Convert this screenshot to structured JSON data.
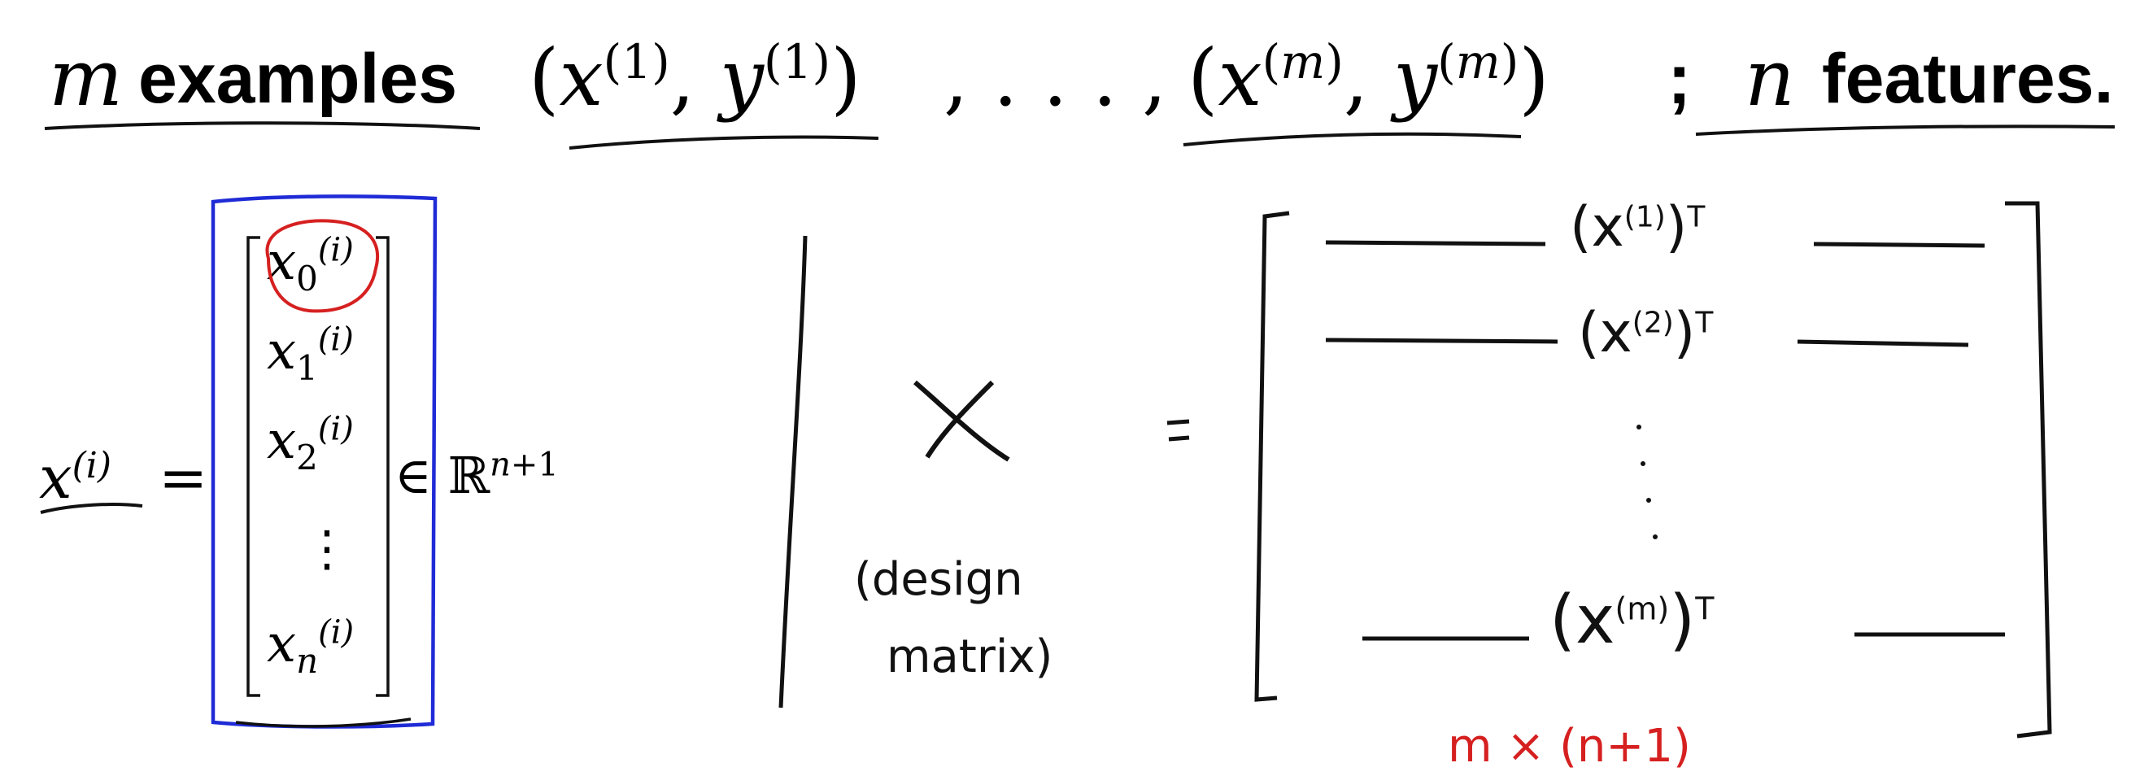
{
  "heading": {
    "m_var": "m",
    "examples_word": "examples",
    "pair_first": "(x(1), y(1))",
    "ellipsis": ", . . . ,",
    "pair_last": "(x(m), y(m))",
    "semicolon": ";",
    "n_var": "n",
    "features_word": "features."
  },
  "vector": {
    "lhs": "x(i)",
    "equals": "=",
    "entries": [
      "x0(i)",
      "x1(i)",
      "x2(i)",
      "⋮",
      "xn(i)"
    ],
    "membership": "∈ ℝn+1"
  },
  "design_matrix": {
    "symbol": "X",
    "note_line1": "(design",
    "note_line2": "matrix)",
    "equals": "=",
    "rows": [
      "(x(1))T",
      "(x(2))T",
      "(x(m))T"
    ],
    "dimension": "m × (n+1)"
  },
  "colors": {
    "ink": "#111111",
    "highlight_box": "#1f2bd6",
    "highlight_circle": "#d62020",
    "dimension_note": "#d62020"
  }
}
